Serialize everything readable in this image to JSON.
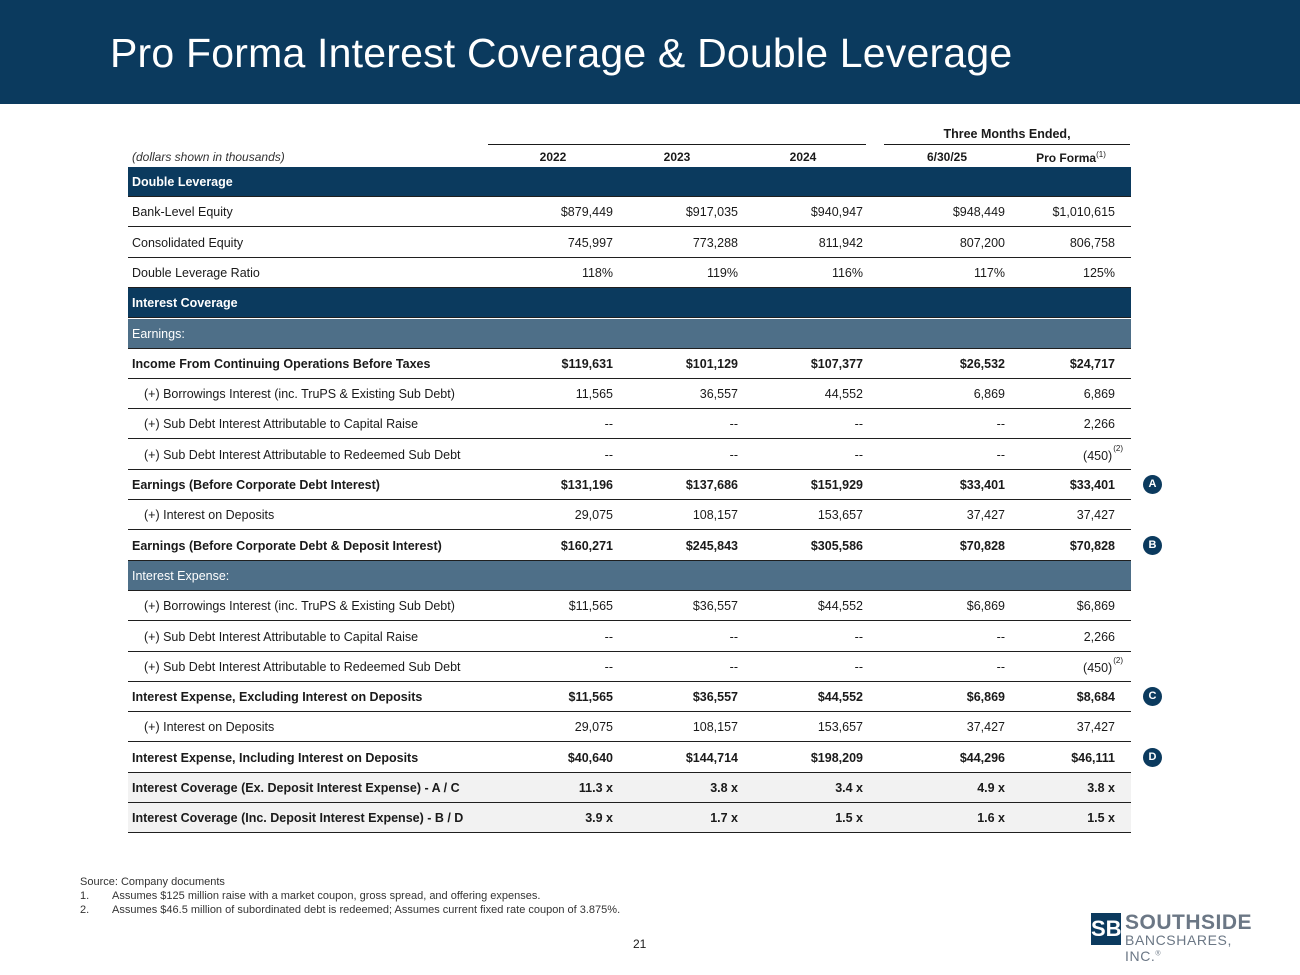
{
  "title": "Pro Forma Interest Coverage & Double Leverage",
  "units_note": "(dollars shown in thousands)",
  "three_months_label": "Three Months Ended,",
  "columns": [
    "2022",
    "2023",
    "2024",
    "6/30/25",
    "Pro Forma"
  ],
  "pro_forma_note": "(1)",
  "rows": [
    {
      "label": "Double Leverage",
      "type": "section"
    },
    {
      "label": "Bank-Level Equity",
      "type": "plain",
      "values": [
        "$879,449",
        "$917,035",
        "$940,947",
        "$948,449",
        "$1,010,615"
      ]
    },
    {
      "label": "Consolidated Equity",
      "type": "plain",
      "values": [
        "745,997",
        "773,288",
        "811,942",
        "807,200",
        "806,758"
      ]
    },
    {
      "label": "Double Leverage Ratio",
      "type": "plain",
      "values": [
        "118%",
        "119%",
        "116%",
        "117%",
        "125%"
      ]
    },
    {
      "label": "Interest Coverage",
      "type": "section"
    },
    {
      "label": "Earnings:",
      "type": "sub"
    },
    {
      "label": "Income From Continuing Operations Before Taxes",
      "type": "bold",
      "values": [
        "$119,631",
        "$101,129",
        "$107,377",
        "$26,532",
        "$24,717"
      ]
    },
    {
      "label": "(+) Borrowings Interest (inc. TruPS & Existing Sub Debt)",
      "type": "indent",
      "values": [
        "11,565",
        "36,557",
        "44,552",
        "6,869",
        "6,869"
      ]
    },
    {
      "label": "(+) Sub Debt Interest Attributable to Capital Raise",
      "type": "indent",
      "values": [
        "--",
        "--",
        "--",
        "--",
        "2,266"
      ]
    },
    {
      "label": "(+) Sub Debt Interest Attributable to Redeemed Sub Debt",
      "type": "indent",
      "values": [
        "--",
        "--",
        "--",
        "--",
        "(450)"
      ],
      "note": "(2)"
    },
    {
      "label": "Earnings (Before Corporate Debt Interest)",
      "type": "bold",
      "values": [
        "$131,196",
        "$137,686",
        "$151,929",
        "$33,401",
        "$33,401"
      ],
      "badge": "A"
    },
    {
      "label": "(+) Interest on Deposits",
      "type": "indent",
      "values": [
        "29,075",
        "108,157",
        "153,657",
        "37,427",
        "37,427"
      ]
    },
    {
      "label": "Earnings (Before Corporate Debt & Deposit Interest)",
      "type": "bold",
      "values": [
        "$160,271",
        "$245,843",
        "$305,586",
        "$70,828",
        "$70,828"
      ],
      "badge": "B"
    },
    {
      "label": "Interest Expense:",
      "type": "sub"
    },
    {
      "label": "(+) Borrowings Interest (inc. TruPS & Existing Sub Debt)",
      "type": "indent",
      "values": [
        "$11,565",
        "$36,557",
        "$44,552",
        "$6,869",
        "$6,869"
      ]
    },
    {
      "label": "(+) Sub Debt Interest Attributable to Capital Raise",
      "type": "indent",
      "values": [
        "--",
        "--",
        "--",
        "--",
        "2,266"
      ]
    },
    {
      "label": "(+) Sub Debt Interest Attributable to Redeemed Sub Debt",
      "type": "indent",
      "values": [
        "--",
        "--",
        "--",
        "--",
        "(450)"
      ],
      "note": "(2)"
    },
    {
      "label": "Interest Expense, Excluding Interest on Deposits",
      "type": "bold",
      "values": [
        "$11,565",
        "$36,557",
        "$44,552",
        "$6,869",
        "$8,684"
      ],
      "badge": "C"
    },
    {
      "label": "(+) Interest on Deposits",
      "type": "indent",
      "values": [
        "29,075",
        "108,157",
        "153,657",
        "37,427",
        "37,427"
      ]
    },
    {
      "label": "Interest Expense, Including Interest on Deposits",
      "type": "bold",
      "values": [
        "$40,640",
        "$144,714",
        "$198,209",
        "$44,296",
        "$46,111"
      ],
      "badge": "D"
    },
    {
      "label": "Interest Coverage (Ex. Deposit Interest Expense) - A / C",
      "type": "bold shaded",
      "values": [
        "11.3 x",
        "3.8 x",
        "3.4 x",
        "4.9 x",
        "3.8 x"
      ]
    },
    {
      "label": "Interest Coverage (Inc. Deposit Interest Expense) - B / D",
      "type": "bold shaded",
      "values": [
        "3.9 x",
        "1.7 x",
        "1.5 x",
        "1.6 x",
        "1.5 x"
      ]
    }
  ],
  "footnotes": {
    "source": "Source: Company documents",
    "items": [
      {
        "num": "1.",
        "text": "Assumes $125 million raise with a market coupon, gross spread, and offering expenses."
      },
      {
        "num": "2.",
        "text": "Assumes $46.5 million of subordinated debt is redeemed; Assumes current fixed rate coupon of 3.875%."
      }
    ]
  },
  "page_number": "21",
  "logo": {
    "mark": "SB",
    "name": "SOUTHSIDE",
    "sub": "BANCSHARES, INC.",
    "tm": "®"
  }
}
